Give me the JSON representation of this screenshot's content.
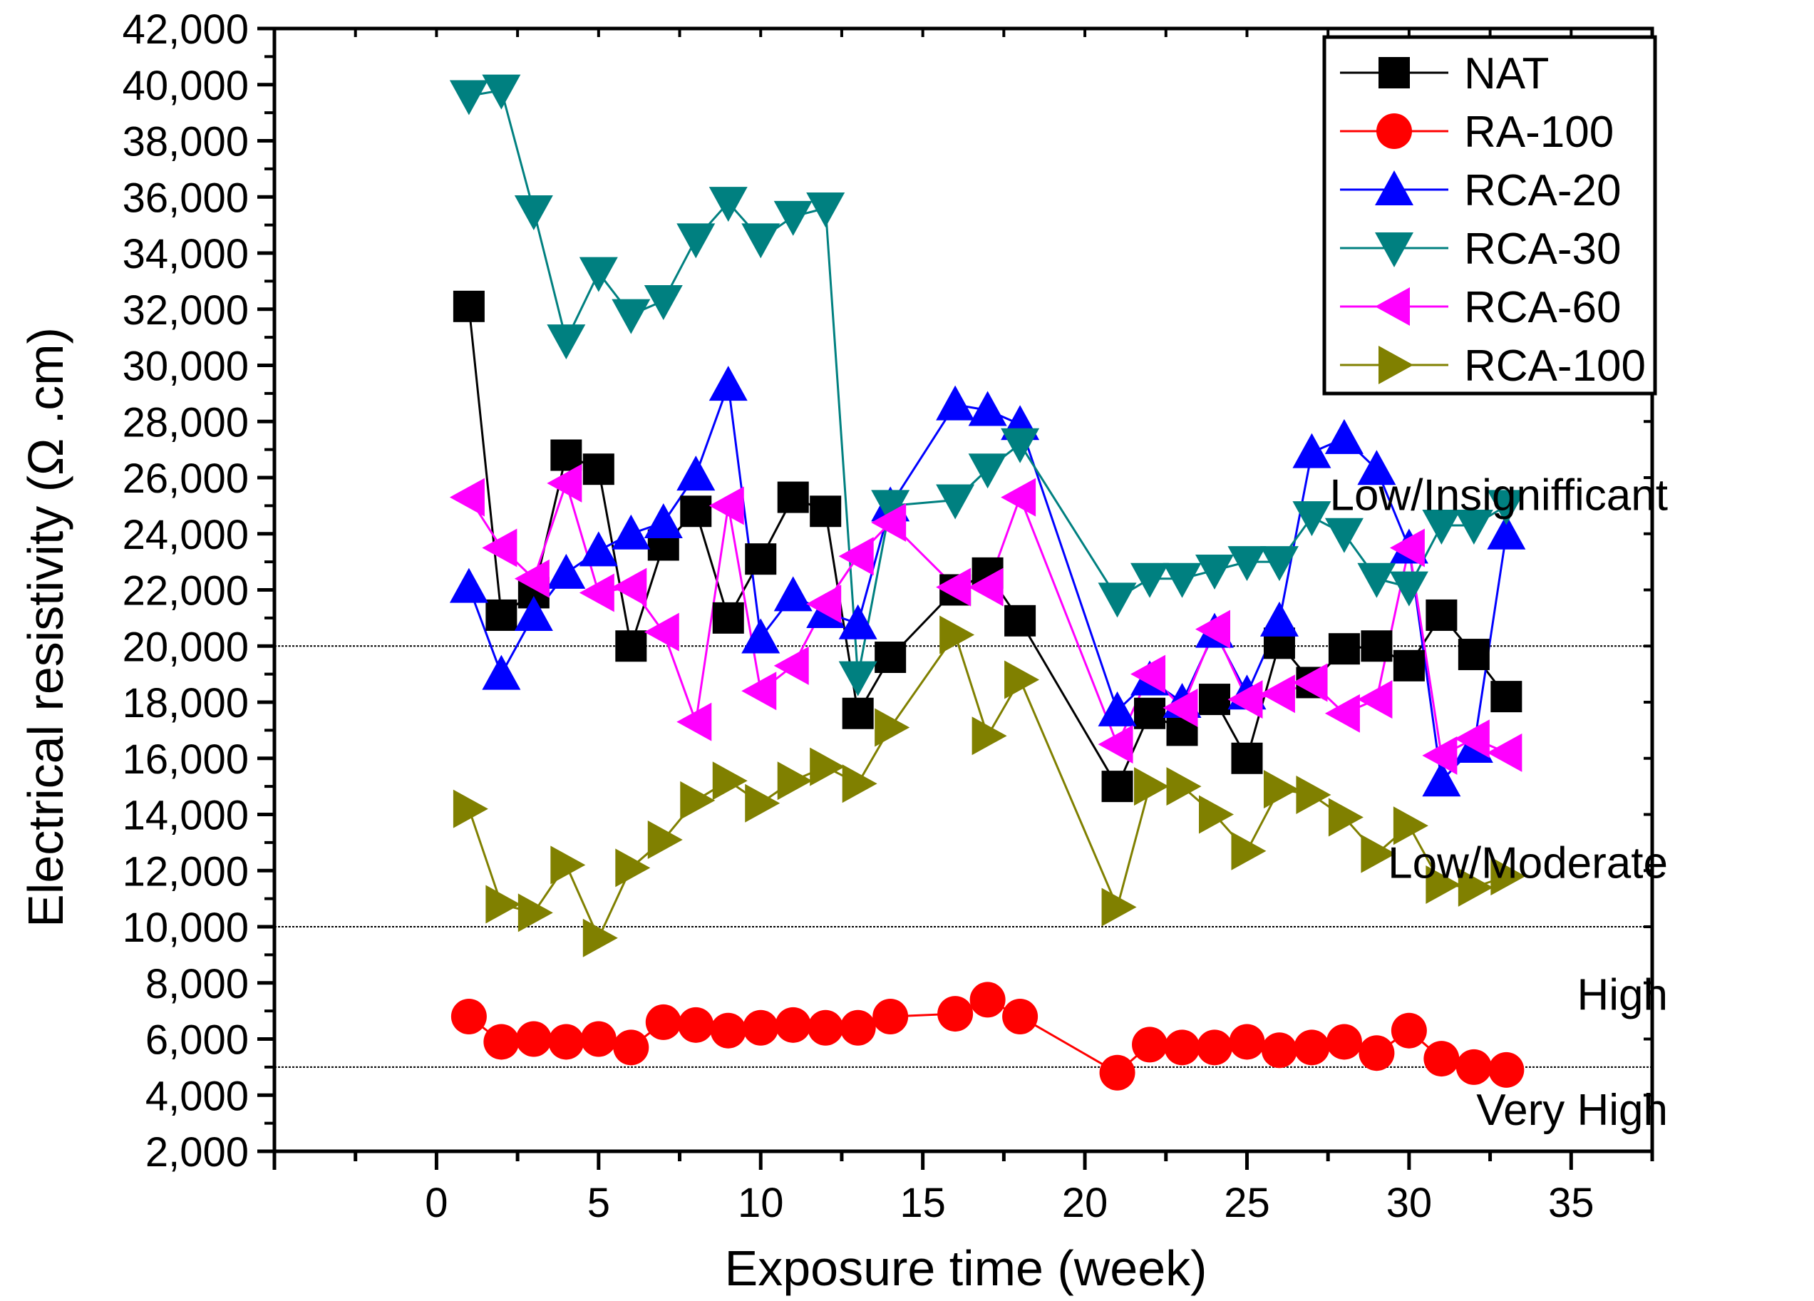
{
  "chart_data": {
    "type": "line",
    "title": "",
    "xlabel": "Exposure time (week)",
    "ylabel": "Electrical resistivity (Ω .cm)",
    "xlim": [
      -5,
      37.5
    ],
    "ylim": [
      2000,
      42000
    ],
    "xticks": [
      0,
      5,
      10,
      15,
      20,
      25,
      30,
      35
    ],
    "yticks": [
      2000,
      4000,
      6000,
      8000,
      10000,
      12000,
      14000,
      16000,
      18000,
      20000,
      22000,
      24000,
      26000,
      28000,
      30000,
      32000,
      34000,
      36000,
      38000,
      40000,
      42000
    ],
    "ytick_labels": [
      "2,000",
      "4,000",
      "6,000",
      "8,000",
      "10,000",
      "12,000",
      "14,000",
      "16,000",
      "18,000",
      "20,000",
      "22,000",
      "24,000",
      "26,000",
      "28,000",
      "30,000",
      "32,000",
      "34,000",
      "36,000",
      "38,000",
      "40,000",
      "42,000"
    ],
    "grid": false,
    "legend_position": "top-right",
    "x": [
      1,
      2,
      3,
      4,
      5,
      6,
      7,
      8,
      9,
      10,
      11,
      12,
      13,
      14,
      16,
      17,
      18,
      21,
      22,
      23,
      24,
      25,
      26,
      27,
      28,
      29,
      30,
      31,
      32,
      33
    ],
    "series": [
      {
        "name": "NAT",
        "color": "#000000",
        "marker": "square",
        "values": [
          32100,
          21100,
          21900,
          26800,
          26300,
          20000,
          23600,
          24800,
          21000,
          23100,
          25300,
          24800,
          17600,
          19600,
          22000,
          22600,
          20900,
          15000,
          17600,
          17000,
          18100,
          16000,
          20100,
          18700,
          19900,
          20000,
          19300,
          21100,
          19700,
          18200
        ]
      },
      {
        "name": "RA-100",
        "color": "#ff0000",
        "marker": "circle",
        "values": [
          6800,
          5900,
          6000,
          5900,
          6000,
          5700,
          6600,
          6500,
          6300,
          6400,
          6500,
          6400,
          6400,
          6800,
          6900,
          7400,
          6800,
          4800,
          5800,
          5700,
          5700,
          5900,
          5600,
          5700,
          5900,
          5500,
          6300,
          5300,
          5000,
          4900
        ]
      },
      {
        "name": "RCA-20",
        "color": "#0000ff",
        "marker": "triangle-up",
        "values": [
          22100,
          19000,
          21100,
          22600,
          23400,
          24000,
          24400,
          26100,
          29300,
          20300,
          21800,
          21200,
          20800,
          25000,
          28600,
          28400,
          27900,
          17700,
          18800,
          18000,
          20500,
          18300,
          20900,
          26900,
          27400,
          26300,
          23500,
          15200,
          16400,
          24000
        ]
      },
      {
        "name": "RCA-30",
        "color": "#008080",
        "marker": "triangle-down",
        "values": [
          39600,
          39800,
          35500,
          30900,
          33300,
          31800,
          32300,
          34500,
          35800,
          34500,
          35300,
          35600,
          18900,
          25000,
          25200,
          26300,
          27200,
          21700,
          22400,
          22400,
          22700,
          23000,
          23000,
          24600,
          24000,
          22400,
          22100,
          24300,
          24300,
          25000
        ]
      },
      {
        "name": "RCA-60",
        "color": "#ff00ff",
        "marker": "triangle-left",
        "values": [
          25300,
          23500,
          22400,
          25800,
          21900,
          22100,
          20500,
          17300,
          25000,
          18400,
          19300,
          21500,
          23200,
          24400,
          22100,
          22100,
          25300,
          16500,
          19000,
          17800,
          20600,
          18100,
          18300,
          18700,
          17600,
          18100,
          23500,
          16100,
          16700,
          16200
        ]
      },
      {
        "name": "RCA-100",
        "color": "#808000",
        "marker": "triangle-right",
        "values": [
          14200,
          10800,
          10500,
          12200,
          9600,
          12100,
          13100,
          14500,
          15200,
          14400,
          15200,
          15700,
          15100,
          17100,
          20400,
          16800,
          18800,
          10700,
          15000,
          15000,
          14000,
          12700,
          14900,
          14700,
          13900,
          12600,
          13600,
          11500,
          11400,
          11800
        ]
      }
    ],
    "threshold_lines": [
      20000,
      10000,
      5000
    ],
    "annotations": [
      {
        "text": "Low/Insignifficant",
        "y": 25400
      },
      {
        "text": "Low/Moderate",
        "y": 12300
      },
      {
        "text": "High",
        "y": 7600
      },
      {
        "text": "Very High",
        "y": 3500
      }
    ]
  }
}
